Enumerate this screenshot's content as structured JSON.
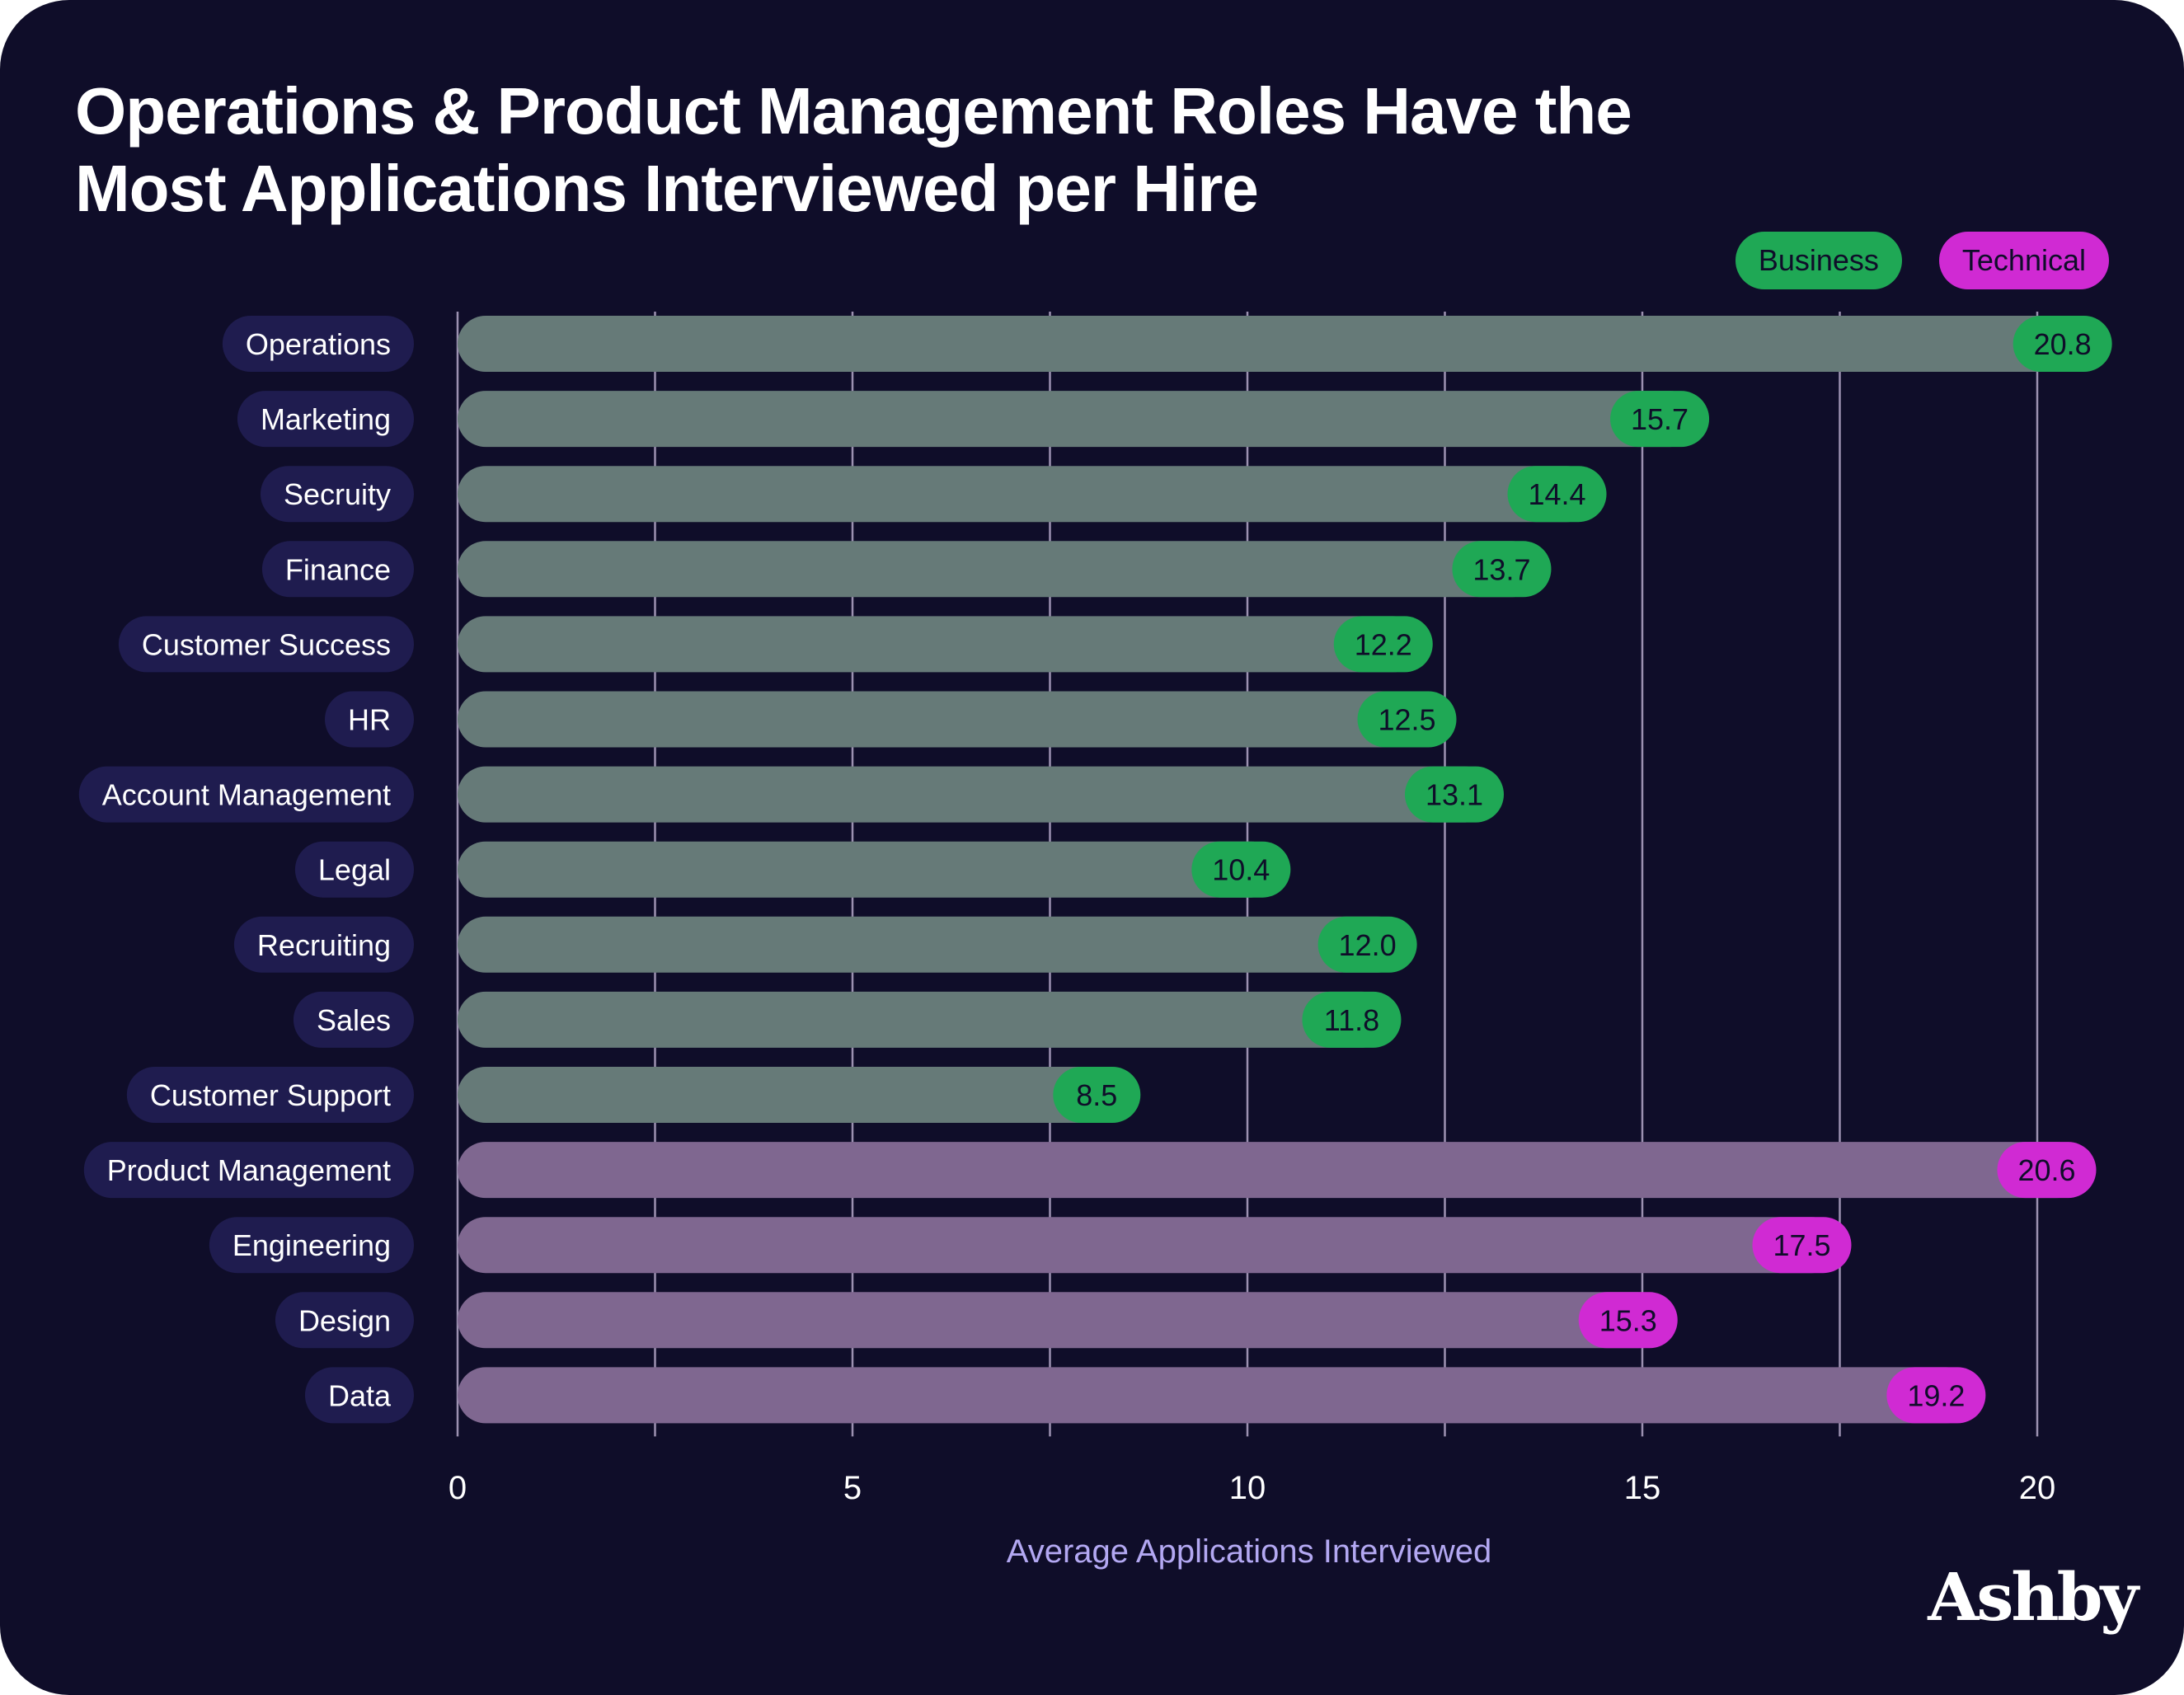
{
  "chart_data": {
    "type": "bar",
    "orientation": "horizontal",
    "title": "Operations & Product Management Roles Have the Most Applications Interviewed per Hire",
    "xlabel": "Average Applications Interviewed",
    "ylabel": "",
    "xlim": [
      0,
      20.8
    ],
    "x_ticks": [
      0,
      5,
      10,
      15,
      20
    ],
    "grid": true,
    "legend": "top-right",
    "categories": [
      "Operations",
      "Marketing",
      "Secruity",
      "Finance",
      "Customer Success",
      "HR",
      "Account Management",
      "Legal",
      "Recruiting",
      "Sales",
      "Customer Support",
      "Product Management",
      "Engineering",
      "Design",
      "Data"
    ],
    "values": [
      20.8,
      15.7,
      14.4,
      13.7,
      12.2,
      12.5,
      13.1,
      10.4,
      12.0,
      11.8,
      8.5,
      20.6,
      17.5,
      15.3,
      19.2
    ],
    "value_labels": [
      "20.8",
      "15.7",
      "14.4",
      "13.7",
      "12.2",
      "12.5",
      "13.1",
      "10.4",
      "12.0",
      "11.8",
      "8.5",
      "20.6",
      "17.5",
      "15.3",
      "19.2"
    ],
    "groups": [
      "Business",
      "Business",
      "Business",
      "Business",
      "Business",
      "Business",
      "Business",
      "Business",
      "Business",
      "Business",
      "Business",
      "Technical",
      "Technical",
      "Technical",
      "Technical"
    ],
    "series": [
      {
        "name": "Business",
        "bar_color": "#667a78",
        "pill_color": "#1fa855"
      },
      {
        "name": "Technical",
        "bar_color": "#7f6790",
        "pill_color": "#d02ad3"
      }
    ]
  },
  "colors": {
    "background": "#0f0d29",
    "category_pill": "#1f1c4f",
    "gridline": "#b5a9c9",
    "axis_label": "#b3a8f2",
    "title": "#ffffff"
  },
  "brand": {
    "logo_text": "Ashby"
  }
}
